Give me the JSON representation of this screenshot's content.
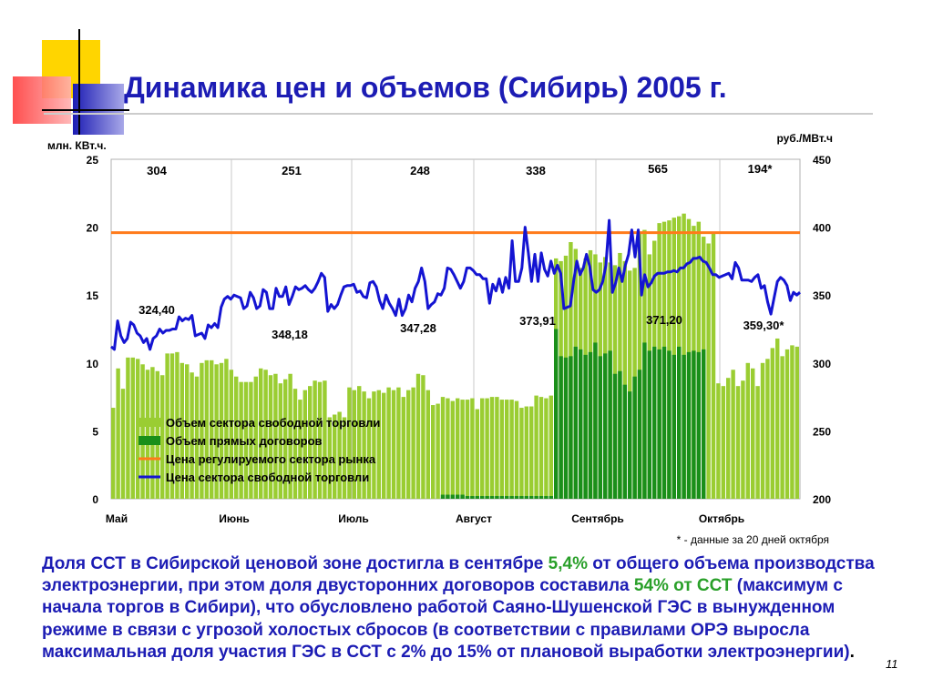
{
  "slide": {
    "title": "Динамика цен и объемов (Сибирь) 2005 г.",
    "page_number": "11",
    "footnote": "* - данные за 20 дней октября",
    "body": {
      "p1": "Доля ССТ в Сибирской ценовой зоне достигла в сентябре ",
      "h1": "5,4%",
      "p2": " от общего объема производства электроэнергии, при этом доля двусторонних договоров составила ",
      "h2": "54% от ССТ",
      "p3": " (максимум с начала торгов в Сибири), что обусловлено работой Саяно-Шушенской ГЭС в вынужденном режиме в связи с угрозой холостых сбросов (в соответствии с правилами ОРЭ выросла максимальная доля участия ГЭС в ССТ с 2% до 15% от плановой выработки электроэнергии)",
      "p4": "."
    },
    "colors": {
      "title": "#1c1cb4",
      "body_text": "#1c1cb4",
      "highlight": "#2aa02a",
      "volume_free": "#9acd32",
      "volume_contracts": "#1a8f1a",
      "regulated_price": "#ff7a1a",
      "free_price": "#1414d2"
    }
  },
  "chart_data": {
    "type": "bar",
    "y_left_label": "млн. КВт.ч.",
    "y_right_label": "руб./МВт.ч",
    "ylim_left": [
      0,
      25
    ],
    "ylim_right": [
      200,
      450
    ],
    "yticks_left": [
      "0",
      "5",
      "10",
      "15",
      "20",
      "25"
    ],
    "yticks_right": [
      "200",
      "250",
      "300",
      "350",
      "400",
      "450"
    ],
    "months": [
      "Май",
      "Июнь",
      "Июль",
      "Август",
      "Сентябрь",
      "Октябрь"
    ],
    "month_top_values": [
      "304",
      "251",
      "248",
      "338",
      "565",
      "194*"
    ],
    "avg_price_labels": [
      "324,40",
      "348,18",
      "347,28",
      "373,91",
      "371,20",
      "359,30*"
    ],
    "legend": [
      "Объем сектора свободной торговли",
      "Объем прямых договоров",
      "Цена регулируемого сектора рынка",
      "Цена сектора свободной торговли"
    ],
    "regulated_price": 396,
    "series": [
      {
        "name": "Объем сектора свободной торговли",
        "values": [
          6.7,
          9.6,
          8.1,
          10.4,
          10.4,
          10.3,
          9.9,
          9.5,
          9.7,
          9.4,
          9.1,
          10.7,
          10.7,
          10.8,
          10.0,
          9.9,
          9.3,
          9.0,
          10.0,
          10.2,
          10.2,
          9.9,
          10.0,
          10.3,
          9.5,
          9.0,
          8.6,
          8.6,
          8.6,
          9.0,
          9.6,
          9.5,
          9.1,
          9.2,
          8.5,
          8.8,
          9.2,
          8.1,
          7.3,
          8.0,
          8.3,
          8.7,
          8.6,
          8.7,
          6.0,
          6.2,
          6.4,
          6.0,
          8.2,
          8.0,
          8.3,
          7.9,
          7.4,
          7.9,
          8.0,
          7.8,
          8.2,
          8.0,
          8.2,
          7.5,
          8.0,
          8.2,
          9.2,
          9.1,
          8.0,
          6.9,
          7.0,
          7.5,
          7.4,
          7.2,
          7.4,
          7.3,
          7.3,
          7.4,
          6.6,
          7.4,
          7.4,
          7.5,
          7.5,
          7.3,
          7.3,
          7.3,
          7.2,
          6.7,
          6.8,
          6.8,
          7.6,
          7.5,
          7.4,
          7.6,
          17.7,
          17.5,
          17.9,
          18.9,
          18.4,
          17.0,
          17.7,
          18.3,
          18.0,
          17.4,
          17.8,
          17.4,
          17.2,
          18.1,
          17.5,
          16.8,
          17.0,
          19.5,
          19.8,
          18.0,
          19.0,
          20.3,
          20.4,
          20.5,
          20.7,
          20.8,
          21.0,
          20.6,
          20.1,
          20.4,
          19.3,
          18.8,
          19.6,
          8.5,
          8.3,
          8.9,
          9.5,
          8.3,
          8.7,
          10.0,
          9.6,
          8.3,
          10.0,
          10.3,
          11.1,
          11.8,
          10.5,
          11.0,
          11.3,
          11.2
        ]
      },
      {
        "name": "Объем прямых договоров",
        "values": [
          0,
          0,
          0,
          0,
          0,
          0,
          0,
          0,
          0,
          0,
          0,
          0,
          0,
          0,
          0,
          0,
          0,
          0,
          0,
          0,
          0,
          0,
          0,
          0,
          0,
          0,
          0,
          0,
          0,
          0,
          0,
          0,
          0,
          0,
          0,
          0,
          0,
          0,
          0,
          0,
          0,
          0,
          0,
          0,
          0,
          0,
          0,
          0,
          0,
          0,
          0,
          0,
          0,
          0,
          0,
          0,
          0,
          0,
          0,
          0,
          0,
          0,
          0,
          0,
          0,
          0,
          0,
          0.3,
          0.3,
          0.3,
          0.3,
          0.3,
          0.2,
          0.2,
          0.2,
          0.2,
          0.2,
          0.2,
          0.2,
          0.2,
          0.2,
          0.2,
          0.2,
          0.2,
          0.2,
          0.2,
          0.2,
          0.2,
          0.2,
          0.2,
          12.5,
          10.5,
          10.4,
          10.5,
          11.2,
          11.0,
          10.6,
          10.8,
          11.5,
          10.5,
          10.7,
          10.9,
          9.2,
          9.4,
          8.4,
          7.9,
          9.0,
          9.5,
          11.5,
          10.9,
          11.2,
          11.0,
          11.2,
          10.9,
          10.6,
          11.2,
          10.6,
          10.8,
          10.9,
          10.8,
          11.0,
          0,
          0,
          0,
          0,
          0,
          0,
          0,
          0,
          0,
          0,
          0,
          0,
          0,
          0,
          0,
          0,
          0,
          0
        ]
      },
      {
        "name": "Цена сектора свободной торговли",
        "values": [
          312,
          310,
          331,
          320,
          315,
          318,
          330,
          328,
          322,
          320,
          315,
          318,
          310,
          318,
          320,
          325,
          322,
          324,
          324,
          325,
          325,
          334,
          331,
          333,
          332,
          335,
          320,
          321,
          322,
          318,
          328,
          326,
          329,
          326,
          341,
          347,
          349,
          347,
          350,
          349,
          348,
          340,
          342,
          352,
          348,
          340,
          342,
          354,
          352,
          340,
          340,
          355,
          349,
          349,
          356,
          343,
          349,
          356,
          354,
          355,
          357,
          354,
          352,
          355,
          360,
          366,
          363,
          338,
          343,
          340,
          343,
          350,
          356,
          357,
          357,
          358,
          352,
          353,
          349,
          348,
          359,
          360,
          356,
          346,
          340,
          350,
          344,
          340,
          335,
          347,
          335,
          340,
          350,
          345,
          355,
          360,
          370,
          360,
          340,
          343,
          345,
          351,
          350,
          355,
          370,
          369,
          365,
          360,
          355,
          360,
          370,
          370,
          368,
          365,
          365,
          362,
          362,
          344,
          358,
          353,
          362,
          352,
          363,
          355,
          390,
          360,
          360,
          370,
          400,
          381,
          360,
          380,
          360,
          381,
          369,
          364,
          375,
          366,
          372,
          366,
          340,
          341,
          342,
          360,
          375,
          365,
          370,
          380,
          371,
          354,
          352,
          354,
          360,
          372,
          405,
          352,
          359,
          370,
          360,
          372,
          380,
          398,
          378,
          398,
          350,
          365,
          356,
          359,
          364,
          366,
          366,
          366,
          367,
          367,
          368,
          367,
          370,
          370,
          373,
          374,
          377,
          377,
          378,
          375,
          374,
          370,
          365,
          365,
          363,
          364,
          365,
          366,
          362,
          374,
          370,
          361,
          361,
          361,
          360,
          363,
          365,
          355,
          357,
          345,
          336,
          348,
          360,
          363,
          361,
          357,
          346,
          352,
          350,
          352
        ]
      }
    ]
  }
}
